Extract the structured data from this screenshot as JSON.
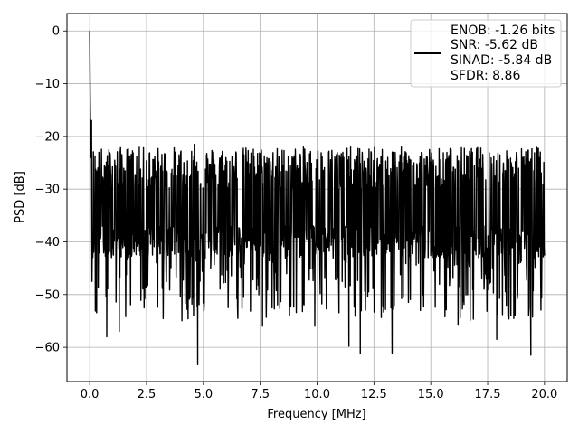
{
  "chart_data": {
    "type": "line",
    "title": "",
    "xlabel": "Frequency [MHz]",
    "ylabel": "PSD [dB]",
    "xlim": [
      -1.0,
      21.0
    ],
    "ylim": [
      -66.5,
      3.3
    ],
    "grid": true,
    "legend_placement": "top-right",
    "x_ticks": [
      0.0,
      2.5,
      5.0,
      7.5,
      10.0,
      12.5,
      15.0,
      17.5,
      20.0
    ],
    "x_tick_labels": [
      "0.0",
      "2.5",
      "5.0",
      "7.5",
      "10.0",
      "12.5",
      "15.0",
      "17.5",
      "20.0"
    ],
    "y_ticks": [
      0,
      -10,
      -20,
      -30,
      -40,
      -50,
      -60
    ],
    "y_tick_labels": [
      "0",
      "−10",
      "−20",
      "−30",
      "−40",
      "−50",
      "−60"
    ],
    "legend": [
      "ENOB: -1.26 bits",
      "SNR: -5.62 dB",
      "SINAD: -5.84 dB",
      "SFDR: 8.86"
    ],
    "series": [
      {
        "color": "#000000",
        "noise_floor_db": -33,
        "frequency_range_mhz": [
          0.0,
          20.0
        ],
        "points": [
          {
            "x": 0.0,
            "y": 0.0
          },
          {
            "x": 0.02,
            "y": -12.0
          },
          {
            "x": 0.05,
            "y": -24.0
          },
          {
            "x": 0.08,
            "y": -17.0
          },
          {
            "x": 0.1,
            "y": -47.5
          },
          {
            "x": 0.75,
            "y": -58.0
          },
          {
            "x": 1.3,
            "y": -57.0
          },
          {
            "x": 4.6,
            "y": -21.5
          },
          {
            "x": 4.75,
            "y": -63.3
          },
          {
            "x": 7.6,
            "y": -56.0
          },
          {
            "x": 9.9,
            "y": -56.0
          },
          {
            "x": 11.4,
            "y": -59.8
          },
          {
            "x": 11.9,
            "y": -61.2
          },
          {
            "x": 13.3,
            "y": -61.1
          },
          {
            "x": 16.2,
            "y": -55.8
          },
          {
            "x": 17.9,
            "y": -58.5
          },
          {
            "x": 19.4,
            "y": -61.5
          },
          {
            "x": 19.4,
            "y": -24.3
          }
        ]
      }
    ]
  }
}
